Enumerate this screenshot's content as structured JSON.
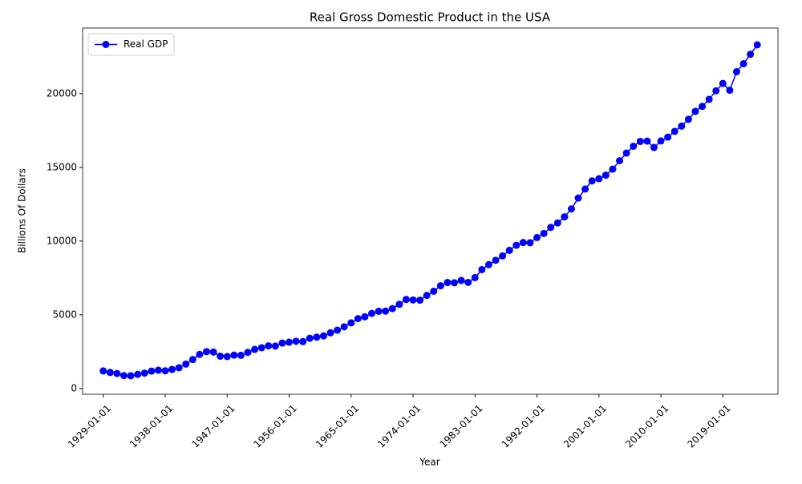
{
  "chart_data": {
    "type": "line",
    "title": "Real Gross Domestic Product in the USA",
    "xlabel": "Year",
    "ylabel": "Billions Of Dollars",
    "x": [
      "1929-01-01",
      "1930-01-01",
      "1931-01-01",
      "1932-01-01",
      "1933-01-01",
      "1934-01-01",
      "1935-01-01",
      "1936-01-01",
      "1937-01-01",
      "1938-01-01",
      "1939-01-01",
      "1940-01-01",
      "1941-01-01",
      "1942-01-01",
      "1943-01-01",
      "1944-01-01",
      "1945-01-01",
      "1946-01-01",
      "1947-01-01",
      "1948-01-01",
      "1949-01-01",
      "1950-01-01",
      "1951-01-01",
      "1952-01-01",
      "1953-01-01",
      "1954-01-01",
      "1955-01-01",
      "1956-01-01",
      "1957-01-01",
      "1958-01-01",
      "1959-01-01",
      "1960-01-01",
      "1961-01-01",
      "1962-01-01",
      "1963-01-01",
      "1964-01-01",
      "1965-01-01",
      "1966-01-01",
      "1967-01-01",
      "1968-01-01",
      "1969-01-01",
      "1970-01-01",
      "1971-01-01",
      "1972-01-01",
      "1973-01-01",
      "1974-01-01",
      "1975-01-01",
      "1976-01-01",
      "1977-01-01",
      "1978-01-01",
      "1979-01-01",
      "1980-01-01",
      "1981-01-01",
      "1982-01-01",
      "1983-01-01",
      "1984-01-01",
      "1985-01-01",
      "1986-01-01",
      "1987-01-01",
      "1988-01-01",
      "1989-01-01",
      "1990-01-01",
      "1991-01-01",
      "1992-01-01",
      "1993-01-01",
      "1994-01-01",
      "1995-01-01",
      "1996-01-01",
      "1997-01-01",
      "1998-01-01",
      "1999-01-01",
      "2000-01-01",
      "2001-01-01",
      "2002-01-01",
      "2003-01-01",
      "2004-01-01",
      "2005-01-01",
      "2006-01-01",
      "2007-01-01",
      "2008-01-01",
      "2009-01-01",
      "2010-01-01",
      "2011-01-01",
      "2012-01-01",
      "2013-01-01",
      "2014-01-01",
      "2015-01-01",
      "2016-01-01",
      "2017-01-01",
      "2018-01-01",
      "2019-01-01",
      "2020-01-01",
      "2021-01-01",
      "2022-01-01",
      "2023-01-01",
      "2024-01-01"
    ],
    "series": [
      {
        "name": "Real GDP",
        "color": "#0000ff",
        "values": [
          1191,
          1089,
          1019,
          877,
          866,
          959,
          1045,
          1182,
          1243,
          1201,
          1297,
          1409,
          1658,
          1967,
          2314,
          2500,
          2473,
          2190,
          2170,
          2264,
          2252,
          2453,
          2653,
          2765,
          2894,
          2878,
          3081,
          3140,
          3207,
          3182,
          3405,
          3484,
          3570,
          3779,
          3955,
          4183,
          4451,
          4743,
          4864,
          5093,
          5237,
          5251,
          5420,
          5709,
          6038,
          6005,
          5992,
          6315,
          6601,
          6969,
          7191,
          7173,
          7330,
          7193,
          7523,
          8064,
          8400,
          8694,
          8995,
          9371,
          9716,
          9902,
          9889,
          10240,
          10517,
          10931,
          11230,
          11645,
          12182,
          12920,
          13530,
          14080,
          14230,
          14470,
          14880,
          15450,
          15970,
          16430,
          16760,
          16780,
          16350,
          16790,
          17050,
          17440,
          17800,
          18260,
          18800,
          19140,
          19610,
          20190,
          20690,
          20230,
          21490,
          22030,
          22670,
          23310
        ]
      }
    ],
    "xticks": [
      "1929-01-01",
      "1938-01-01",
      "1947-01-01",
      "1956-01-01",
      "1965-01-01",
      "1974-01-01",
      "1983-01-01",
      "1992-01-01",
      "2001-01-01",
      "2010-01-01",
      "2019-01-01"
    ],
    "ylim": [
      -390,
      24450
    ],
    "yticks": [
      0,
      5000,
      10000,
      15000,
      20000
    ],
    "legend": "upper left"
  }
}
